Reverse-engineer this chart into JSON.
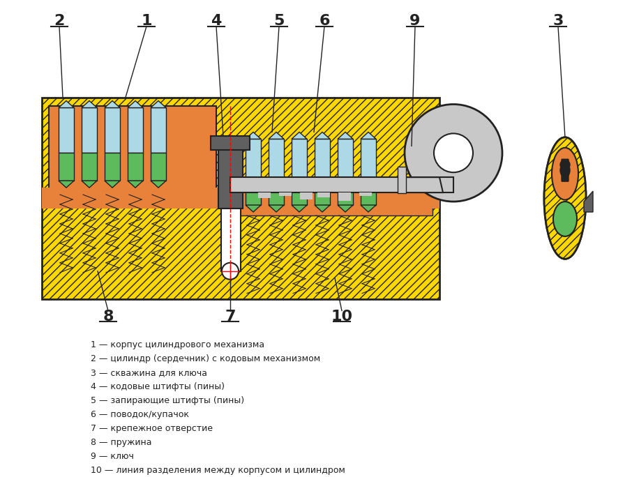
{
  "bg_color": "#ffffff",
  "gold": "#FFD700",
  "gold_dark": "#DAA520",
  "orange": "#E8813A",
  "blue_light": "#ADD8E6",
  "green": "#5DBB5D",
  "gray": "#A0A0A0",
  "gray_light": "#C8C8C8",
  "gray_dark": "#606060",
  "dark": "#222222",
  "red": "#FF0000",
  "white": "#FFFFFF",
  "legend_lines": [
    "1 — корпус цилиндрового механизма",
    "2 — цилиндр (сердечник) с кодовым механизмом",
    "3 — скважина для ключа",
    "4 — кодовые штифты (пины)",
    "5 — запирающие штифты (пины)",
    "6 — поводок/купачок",
    "7 — крепежное отверстие",
    "8 — пружина",
    "9 — ключ",
    "10 — линия разделения между корпусом и цилиндром"
  ]
}
